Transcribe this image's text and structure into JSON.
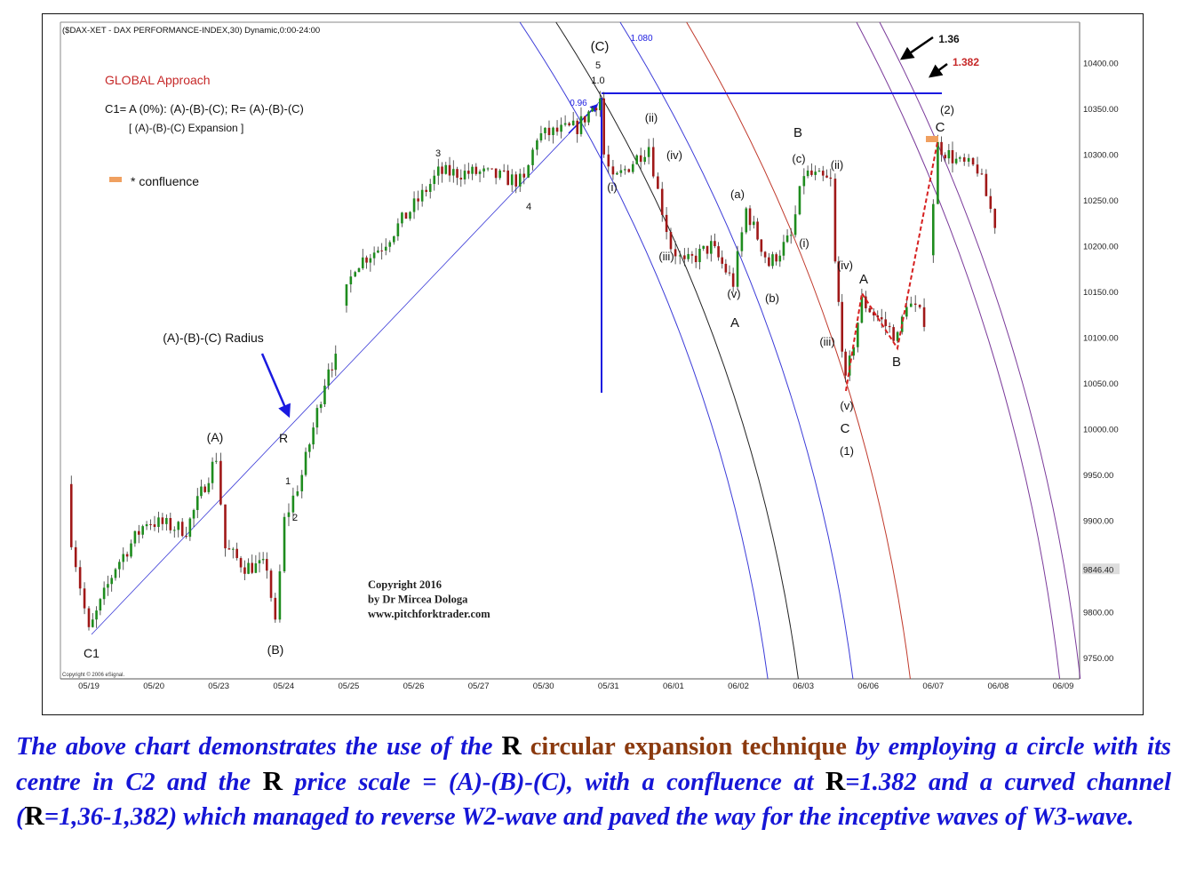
{
  "chart_data": {
    "type": "candlestick",
    "title": "($DAX-XET - DAX PERFORMANCE-INDEX,30) Dynamic,0:00-24:00",
    "x_tick_labels": [
      "05/19",
      "05/20",
      "05/23",
      "05/24",
      "05/25",
      "05/26",
      "05/27",
      "05/30",
      "05/31",
      "06/01",
      "06/02",
      "06/03",
      "06/06",
      "06/07",
      "06/08",
      "06/09"
    ],
    "y_tick_labels": [
      "10400.00",
      "10350.00",
      "10300.00",
      "10250.00",
      "10200.00",
      "10150.00",
      "10100.00",
      "10050.00",
      "10000.00",
      "9950.00",
      "9900.00",
      "9846.40",
      "9800.00",
      "9750.00"
    ],
    "ylim": [
      9720,
      10440
    ],
    "last_price": "9846.40",
    "price_path_segments": [
      [
        [
          -0.34,
          9940
        ],
        [
          -0.27,
          9880
        ],
        [
          0,
          9778
        ],
        [
          0.41,
          9850
        ],
        [
          0.89,
          9900
        ],
        [
          1.5,
          9890
        ],
        [
          1.96,
          9970
        ],
        [
          2.1,
          9870
        ],
        [
          2.4,
          9850
        ],
        [
          2.74,
          9850
        ],
        [
          2.87,
          9785
        ],
        [
          3.01,
          9900
        ],
        [
          3.28,
          9950
        ],
        [
          3.69,
          10070
        ],
        [
          3.8,
          10075
        ]
      ],
      [
        [
          3.9,
          10135
        ],
        [
          4.1,
          10180
        ],
        [
          4.51,
          10200
        ],
        [
          5.07,
          10250
        ],
        [
          5.38,
          10280
        ],
        [
          6.02,
          10280
        ],
        [
          6.7,
          10270
        ],
        [
          6.9,
          10320
        ],
        [
          7.52,
          10330
        ],
        [
          7.87,
          10362
        ],
        [
          7.93,
          10300
        ],
        [
          8.07,
          10270
        ],
        [
          8.62,
          10310
        ],
        [
          8.76,
          10260
        ],
        [
          8.96,
          10200
        ],
        [
          9.17,
          10180
        ],
        [
          9.58,
          10200
        ],
        [
          9.92,
          10160
        ],
        [
          10.12,
          10240
        ],
        [
          10.47,
          10180
        ],
        [
          10.81,
          10210
        ],
        [
          11.01,
          10280
        ],
        [
          11.42,
          10270
        ],
        [
          11.49,
          10180
        ],
        [
          11.65,
          10050
        ],
        [
          11.9,
          10140
        ],
        [
          12.45,
          10100
        ],
        [
          12.59,
          10140
        ],
        [
          12.86,
          10120
        ]
      ],
      [
        [
          12.93,
          10190
        ],
        [
          13.07,
          10310
        ],
        [
          13.41,
          10290
        ],
        [
          13.68,
          10285
        ],
        [
          13.95,
          10225
        ]
      ]
    ],
    "arcs": [
      {
        "ratio_label": "0.96",
        "color": "#3b3bd8"
      },
      {
        "ratio_label": "1.0",
        "color": "#222222"
      },
      {
        "ratio_label": "1.080",
        "color": "#3b3bd8"
      },
      {
        "ratio_label": "",
        "color": "#c0392b"
      },
      {
        "ratio_label": "1.36",
        "color": "#7a3a9a"
      },
      {
        "ratio_label": "1.382",
        "color": "#7a3a9a"
      }
    ],
    "legend": {
      "title": "GLOBAL Approach",
      "line1": "C1= A (0%): (A)-(B)-(C); R= (A)-(B)-(C)",
      "line2": "[ (A)-(B)-(C) Expansion ]",
      "confluence": "* confluence"
    },
    "annotations": [
      "(C)",
      "5",
      "1.0",
      "1.080",
      "0.96",
      "3",
      "4",
      "(A)",
      "R",
      "(B)",
      "C1",
      "1",
      "2",
      "(A)-(B)-(C) Radius",
      "(ii)",
      "(i)",
      "(iv)",
      "(iii)",
      "(v)",
      "A",
      "(a)",
      "(b)",
      "B",
      "(c)",
      "(i)",
      "(ii)",
      "(iv)",
      "(iii)",
      "(v)",
      "C",
      "(1)",
      "A",
      "B",
      "C",
      "(2)",
      "1.36",
      "1.382"
    ],
    "copyright": [
      "Copyright 2016",
      "by Dr Mircea Dologa",
      "www.pitchforktrader.com"
    ],
    "esignal": "Copyright © 2006 eSignal.",
    "colors": {
      "up": "#1e8c1e",
      "down": "#a01818",
      "accent": "#1a1ae0",
      "confluence": "#f0a060",
      "red_label": "#c62828"
    }
  },
  "caption": {
    "p1": "The above chart demonstrates the use of the ",
    "r1": "R",
    "brown": " circular expansion technique",
    "p2": " by employing a circle with its centre in C2 and the ",
    "r2": "R",
    "p3": " price scale = (A)-(B)-(C), with a confluence at ",
    "r3": "R",
    "p4": "=1.382 and a curved channel (",
    "r4": "R",
    "p5": "=1,36-1,382) which managed to reverse W2-wave and paved the way for the inceptive waves of W3-wave."
  }
}
